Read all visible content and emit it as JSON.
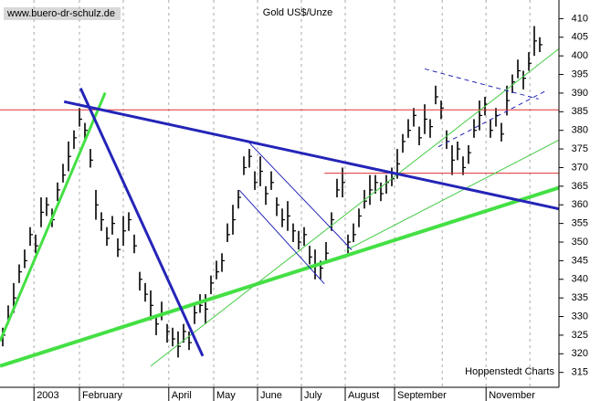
{
  "chart_data": {
    "type": "ohlc",
    "title": "Gold US$/Unze",
    "source": "www.buero-dr-schulz.de",
    "credit": "Hoppenstedt Charts",
    "xlim": [
      0,
      102
    ],
    "xticks": [
      {
        "value": 6.2,
        "label": "2003"
      },
      {
        "value": 14.5,
        "label": "February"
      },
      {
        "value": 30.8,
        "label": "April"
      },
      {
        "value": 39,
        "label": "May"
      },
      {
        "value": 47,
        "label": "June"
      },
      {
        "value": 55,
        "label": "July"
      },
      {
        "value": 63,
        "label": "August"
      },
      {
        "value": 72,
        "label": "September"
      },
      {
        "value": 88.7,
        "label": "November"
      }
    ],
    "xgrid": [
      6.2,
      14.5,
      22.5,
      30.8,
      39,
      47,
      55,
      63,
      72,
      80.7,
      88.7,
      96.7
    ],
    "ylim": [
      311,
      415
    ],
    "yticks": [
      315,
      320,
      325,
      330,
      335,
      340,
      345,
      350,
      355,
      360,
      365,
      370,
      375,
      380,
      385,
      390,
      395,
      400,
      405,
      410
    ],
    "color": "#000000",
    "high": [
      327,
      333,
      339,
      344,
      348,
      354,
      352,
      362,
      362,
      359,
      366,
      371,
      377,
      380,
      386,
      382,
      375,
      364,
      358,
      354,
      357,
      351,
      357,
      358,
      352,
      342,
      339,
      337,
      330,
      334,
      328,
      327,
      326,
      328,
      326,
      333,
      336,
      336,
      341,
      345,
      347,
      355,
      360,
      364,
      373,
      375,
      369,
      373,
      365,
      369,
      362,
      359,
      361,
      355,
      353,
      354,
      349,
      348,
      345,
      350,
      358,
      367,
      370,
      352,
      355,
      359,
      364,
      368,
      368,
      366,
      368,
      370,
      375,
      379,
      383,
      386,
      381,
      387,
      383,
      392,
      388,
      380,
      376,
      377,
      373,
      376,
      383,
      388,
      389,
      383,
      386,
      382,
      392,
      395,
      399,
      396,
      401,
      408,
      405
    ],
    "low": [
      322,
      328,
      331,
      339,
      343,
      349,
      347,
      354,
      357,
      354,
      361,
      366,
      369,
      375,
      381,
      377,
      370,
      356,
      353,
      349,
      352,
      346,
      349,
      353,
      347,
      337,
      334,
      329,
      325,
      329,
      323,
      322,
      319,
      323,
      321,
      328,
      331,
      328,
      336,
      340,
      342,
      350,
      352,
      359,
      368,
      370,
      364,
      365,
      360,
      364,
      357,
      354,
      353,
      350,
      348,
      349,
      344,
      340,
      340,
      345,
      353,
      362,
      362,
      347,
      350,
      354,
      359,
      360,
      363,
      361,
      363,
      365,
      367,
      374,
      378,
      381,
      376,
      379,
      378,
      387,
      383,
      375,
      368,
      372,
      368,
      371,
      378,
      380,
      384,
      378,
      381,
      377,
      384,
      390,
      394,
      391,
      396,
      400,
      401
    ],
    "close": [
      325,
      330,
      335,
      342,
      345,
      352,
      349,
      358,
      360,
      356,
      364,
      368,
      373,
      378,
      383,
      380,
      372,
      360,
      356,
      351,
      355,
      348,
      353,
      356,
      349,
      340,
      336,
      333,
      328,
      331,
      326,
      324,
      322,
      326,
      323,
      331,
      333,
      332,
      339,
      342,
      345,
      352,
      356,
      362,
      370,
      373,
      366,
      369,
      363,
      366,
      360,
      356,
      357,
      353,
      350,
      352,
      346,
      344,
      343,
      347,
      356,
      364,
      366,
      350,
      352,
      357,
      361,
      364,
      366,
      363,
      366,
      367,
      371,
      377,
      380,
      384,
      378,
      383,
      381,
      389,
      386,
      377,
      372,
      375,
      370,
      374,
      380,
      384,
      387,
      380,
      384,
      379,
      388,
      393,
      396,
      394,
      398,
      404,
      403
    ],
    "lines": [
      {
        "color": "#e03030",
        "width": 1,
        "x": [
          0,
          102
        ],
        "y": [
          385.5,
          385.5
        ]
      },
      {
        "color": "#e03030",
        "width": 1,
        "x": [
          59.2,
          102
        ],
        "y": [
          368.5,
          368.5
        ]
      },
      {
        "color": "#44e044",
        "width": 4,
        "x": [
          0,
          102
        ],
        "y": [
          316.7,
          364.6
        ]
      },
      {
        "color": "#44e044",
        "width": 3,
        "x": [
          0,
          19.2
        ],
        "y": [
          323.4,
          390.1
        ]
      },
      {
        "color": "#44cc44",
        "width": 1,
        "x": [
          27.5,
          102
        ],
        "y": [
          316.7,
          401.9
        ]
      },
      {
        "color": "#44cc44",
        "width": 1,
        "x": [
          63.3,
          102
        ],
        "y": [
          347.9,
          377.4
        ]
      },
      {
        "color": "#2424b8",
        "width": 3,
        "x": [
          11.7,
          102
        ],
        "y": [
          387.7,
          358.9
        ]
      },
      {
        "color": "#2424b8",
        "width": 3,
        "x": [
          14.7,
          37
        ],
        "y": [
          391.3,
          319.4
        ]
      },
      {
        "color": "#2424b8",
        "width": 1,
        "x": [
          45,
          64.2
        ],
        "y": [
          377.4,
          347.9
        ]
      },
      {
        "color": "#2424b8",
        "width": 1,
        "x": [
          43.7,
          59.2
        ],
        "y": [
          363.9,
          338.8
        ]
      },
      {
        "color": "#2424b8",
        "width": 1,
        "dash": true,
        "x": [
          77.5,
          98.3
        ],
        "y": [
          396.5,
          388.4
        ]
      },
      {
        "color": "#2424b8",
        "width": 1,
        "dash": true,
        "x": [
          80,
          100
        ],
        "y": [
          375.6,
          390.9
        ]
      }
    ]
  }
}
